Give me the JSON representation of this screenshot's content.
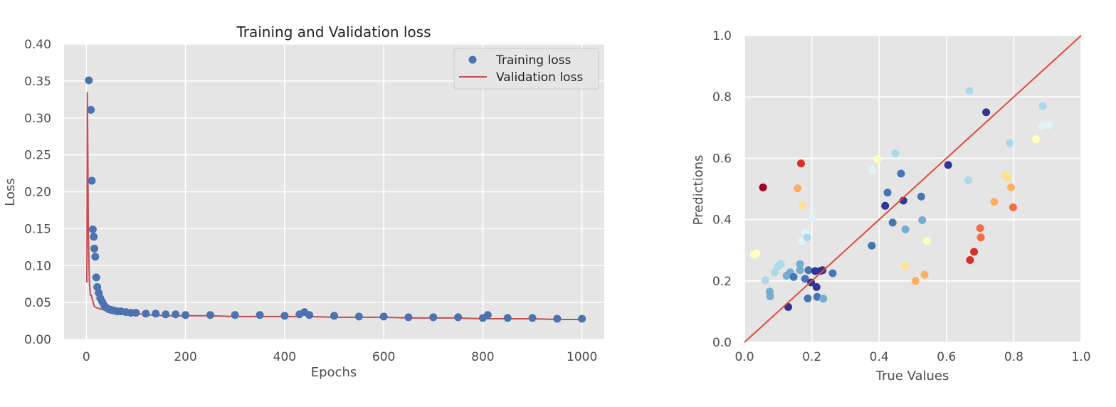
{
  "chart_data": [
    {
      "type": "line",
      "title": "Training and Validation loss",
      "xlabel": "Epochs",
      "ylabel": "Loss",
      "xlim": [
        -45,
        1045
      ],
      "ylim": [
        0,
        0.4
      ],
      "xticks": [
        0,
        200,
        400,
        600,
        800,
        1000
      ],
      "yticks": [
        0.0,
        0.05,
        0.1,
        0.15,
        0.2,
        0.25,
        0.3,
        0.35,
        0.4
      ],
      "ytick_labels": [
        "0.00",
        "0.05",
        "0.10",
        "0.15",
        "0.20",
        "0.25",
        "0.30",
        "0.35",
        "0.40"
      ],
      "grid": true,
      "legend_position": "top-right",
      "series": [
        {
          "name": "Training loss",
          "kind": "scatter",
          "color": "#4c72b0",
          "x": [
            5,
            9,
            11,
            13,
            15,
            16,
            18,
            20,
            22,
            25,
            28,
            32,
            36,
            40,
            45,
            50,
            56,
            63,
            70,
            80,
            90,
            100,
            120,
            140,
            160,
            180,
            200,
            250,
            300,
            350,
            400,
            430,
            440,
            450,
            500,
            550,
            600,
            650,
            700,
            750,
            800,
            810,
            850,
            900,
            950,
            1000
          ],
          "y": [
            0.351,
            0.311,
            0.215,
            0.149,
            0.139,
            0.123,
            0.112,
            0.084,
            0.071,
            0.063,
            0.056,
            0.051,
            0.046,
            0.043,
            0.041,
            0.04,
            0.039,
            0.038,
            0.038,
            0.037,
            0.036,
            0.036,
            0.035,
            0.035,
            0.034,
            0.034,
            0.033,
            0.033,
            0.033,
            0.033,
            0.032,
            0.034,
            0.037,
            0.033,
            0.032,
            0.031,
            0.031,
            0.03,
            0.03,
            0.03,
            0.029,
            0.033,
            0.029,
            0.029,
            0.028,
            0.028
          ]
        },
        {
          "name": "Validation loss",
          "kind": "line",
          "color": "#c44e52",
          "x": [
            1,
            2,
            3,
            4,
            6,
            8,
            10,
            13,
            16,
            20,
            25,
            30,
            40,
            50,
            60,
            80,
            100,
            130,
            160,
            200,
            250,
            300,
            350,
            400,
            430,
            440,
            450,
            500,
            550,
            600,
            650,
            700,
            750,
            800,
            850,
            900,
            950,
            1000
          ],
          "y": [
            0.077,
            0.335,
            0.25,
            0.15,
            0.08,
            0.06,
            0.06,
            0.052,
            0.045,
            0.043,
            0.042,
            0.041,
            0.039,
            0.038,
            0.037,
            0.036,
            0.035,
            0.033,
            0.032,
            0.032,
            0.032,
            0.031,
            0.031,
            0.031,
            0.031,
            0.034,
            0.031,
            0.03,
            0.03,
            0.03,
            0.029,
            0.029,
            0.029,
            0.028,
            0.028,
            0.028,
            0.027,
            0.027
          ]
        }
      ]
    },
    {
      "type": "scatter",
      "title": "",
      "xlabel": "True Values",
      "ylabel": "Predictions",
      "xlim": [
        0,
        1.0
      ],
      "ylim": [
        0,
        1.0
      ],
      "xticks": [
        0.0,
        0.2,
        0.4,
        0.6,
        0.8,
        1.0
      ],
      "yticks": [
        0.0,
        0.2,
        0.4,
        0.6,
        0.8,
        1.0
      ],
      "xtick_labels": [
        "0.0",
        "0.2",
        "0.4",
        "0.6",
        "0.8",
        "1.0"
      ],
      "ytick_labels": [
        "0.0",
        "0.2",
        "0.4",
        "0.6",
        "0.8",
        "1.0"
      ],
      "grid": true,
      "reference_line": {
        "x": [
          0,
          1.0
        ],
        "y": [
          0,
          1.0
        ],
        "color": "#e24a33"
      },
      "points": [
        {
          "x": 0.055,
          "y": 0.505,
          "color": "#a50026"
        },
        {
          "x": 0.168,
          "y": 0.583,
          "color": "#d73027"
        },
        {
          "x": 0.172,
          "y": 0.445,
          "color": "#fee090"
        },
        {
          "x": 0.158,
          "y": 0.502,
          "color": "#fdae61"
        },
        {
          "x": 0.028,
          "y": 0.285,
          "color": "#ffffbf"
        },
        {
          "x": 0.036,
          "y": 0.29,
          "color": "#ffffbf"
        },
        {
          "x": 0.062,
          "y": 0.202,
          "color": "#abd9e9"
        },
        {
          "x": 0.075,
          "y": 0.165,
          "color": "#74add1"
        },
        {
          "x": 0.076,
          "y": 0.15,
          "color": "#74add1"
        },
        {
          "x": 0.09,
          "y": 0.228,
          "color": "#abd9e9"
        },
        {
          "x": 0.1,
          "y": 0.248,
          "color": "#abd9e9"
        },
        {
          "x": 0.108,
          "y": 0.255,
          "color": "#abd9e9"
        },
        {
          "x": 0.125,
          "y": 0.217,
          "color": "#74add1"
        },
        {
          "x": 0.13,
          "y": 0.115,
          "color": "#313695"
        },
        {
          "x": 0.136,
          "y": 0.228,
          "color": "#74add1"
        },
        {
          "x": 0.146,
          "y": 0.213,
          "color": "#4575b4"
        },
        {
          "x": 0.165,
          "y": 0.255,
          "color": "#74add1"
        },
        {
          "x": 0.165,
          "y": 0.235,
          "color": "#74add1"
        },
        {
          "x": 0.17,
          "y": 0.33,
          "color": "#e0f3f8"
        },
        {
          "x": 0.18,
          "y": 0.207,
          "color": "#4575b4"
        },
        {
          "x": 0.182,
          "y": 0.358,
          "color": "#e0f3f8"
        },
        {
          "x": 0.186,
          "y": 0.342,
          "color": "#abd9e9"
        },
        {
          "x": 0.188,
          "y": 0.143,
          "color": "#4575b4"
        },
        {
          "x": 0.19,
          "y": 0.235,
          "color": "#4575b4"
        },
        {
          "x": 0.198,
          "y": 0.195,
          "color": "#313695"
        },
        {
          "x": 0.2,
          "y": 0.405,
          "color": "#e0f3f8"
        },
        {
          "x": 0.21,
          "y": 0.232,
          "color": "#313695"
        },
        {
          "x": 0.214,
          "y": 0.18,
          "color": "#313695"
        },
        {
          "x": 0.216,
          "y": 0.148,
          "color": "#4575b4"
        },
        {
          "x": 0.226,
          "y": 0.233,
          "color": "#313695"
        },
        {
          "x": 0.232,
          "y": 0.235,
          "color": "#313695"
        },
        {
          "x": 0.234,
          "y": 0.142,
          "color": "#74add1"
        },
        {
          "x": 0.262,
          "y": 0.225,
          "color": "#4575b4"
        },
        {
          "x": 0.378,
          "y": 0.315,
          "color": "#4575b4"
        },
        {
          "x": 0.38,
          "y": 0.562,
          "color": "#e0f3f8"
        },
        {
          "x": 0.395,
          "y": 0.597,
          "color": "#ffffbf"
        },
        {
          "x": 0.418,
          "y": 0.445,
          "color": "#313695"
        },
        {
          "x": 0.425,
          "y": 0.488,
          "color": "#4575b4"
        },
        {
          "x": 0.44,
          "y": 0.39,
          "color": "#4575b4"
        },
        {
          "x": 0.448,
          "y": 0.615,
          "color": "#abd9e9"
        },
        {
          "x": 0.465,
          "y": 0.55,
          "color": "#4575b4"
        },
        {
          "x": 0.472,
          "y": 0.462,
          "color": "#313695"
        },
        {
          "x": 0.478,
          "y": 0.368,
          "color": "#74add1"
        },
        {
          "x": 0.478,
          "y": 0.248,
          "color": "#fee090"
        },
        {
          "x": 0.508,
          "y": 0.2,
          "color": "#fdae61"
        },
        {
          "x": 0.525,
          "y": 0.475,
          "color": "#4575b4"
        },
        {
          "x": 0.528,
          "y": 0.398,
          "color": "#74add1"
        },
        {
          "x": 0.535,
          "y": 0.22,
          "color": "#fdae61"
        },
        {
          "x": 0.542,
          "y": 0.33,
          "color": "#ffffbf"
        },
        {
          "x": 0.605,
          "y": 0.578,
          "color": "#313695"
        },
        {
          "x": 0.665,
          "y": 0.528,
          "color": "#abd9e9"
        },
        {
          "x": 0.668,
          "y": 0.82,
          "color": "#abd9e9"
        },
        {
          "x": 0.67,
          "y": 0.268,
          "color": "#d73027"
        },
        {
          "x": 0.682,
          "y": 0.295,
          "color": "#d73027"
        },
        {
          "x": 0.7,
          "y": 0.372,
          "color": "#f46d43"
        },
        {
          "x": 0.702,
          "y": 0.342,
          "color": "#f46d43"
        },
        {
          "x": 0.718,
          "y": 0.75,
          "color": "#313695"
        },
        {
          "x": 0.742,
          "y": 0.458,
          "color": "#fdae61"
        },
        {
          "x": 0.775,
          "y": 0.545,
          "color": "#fee090"
        },
        {
          "x": 0.782,
          "y": 0.535,
          "color": "#fee090"
        },
        {
          "x": 0.788,
          "y": 0.65,
          "color": "#abd9e9"
        },
        {
          "x": 0.792,
          "y": 0.505,
          "color": "#fdae61"
        },
        {
          "x": 0.798,
          "y": 0.44,
          "color": "#f46d43"
        },
        {
          "x": 0.866,
          "y": 0.662,
          "color": "#ffffbf"
        },
        {
          "x": 0.884,
          "y": 0.705,
          "color": "#e0f3f8"
        },
        {
          "x": 0.886,
          "y": 0.77,
          "color": "#abd9e9"
        },
        {
          "x": 0.904,
          "y": 0.708,
          "color": "#e0f3f8"
        }
      ]
    }
  ]
}
